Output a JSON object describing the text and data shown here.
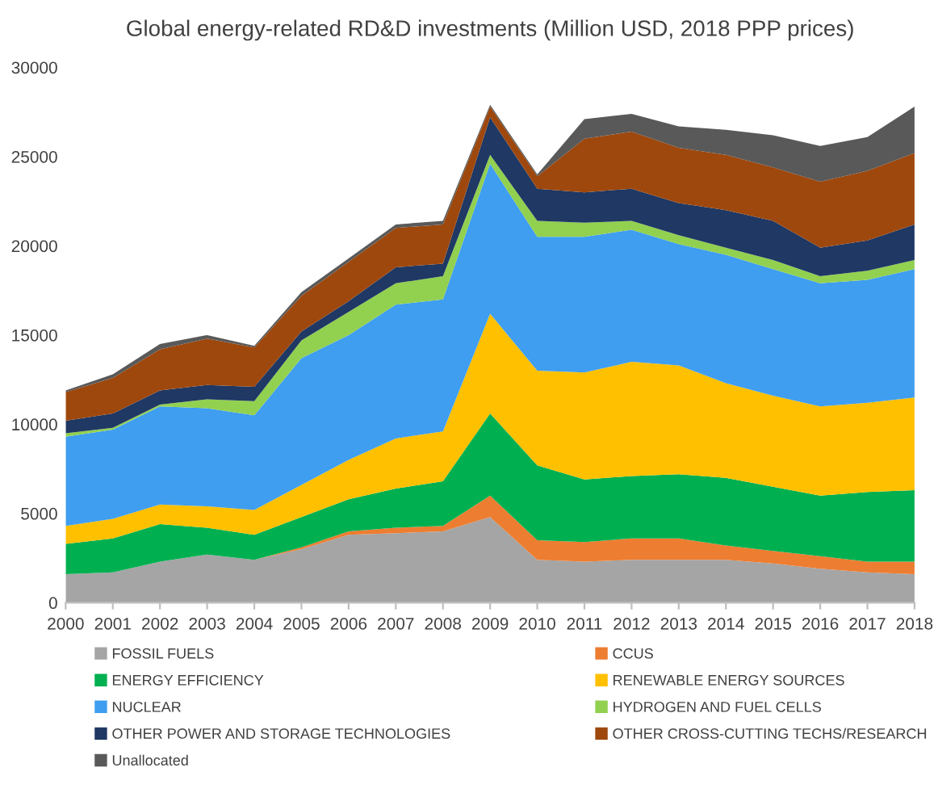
{
  "chart_data": {
    "type": "area",
    "stacked": true,
    "title": "Global energy-related RD&D investments (Million USD, 2018 PPP prices)",
    "x": [
      2000,
      2001,
      2002,
      2003,
      2004,
      2005,
      2006,
      2007,
      2008,
      2009,
      2010,
      2011,
      2012,
      2013,
      2014,
      2015,
      2016,
      2017,
      2018
    ],
    "xlim": [
      2000,
      2018
    ],
    "xticks": [
      2000,
      2001,
      2002,
      2003,
      2004,
      2005,
      2006,
      2007,
      2008,
      2009,
      2010,
      2011,
      2012,
      2013,
      2014,
      2015,
      2016,
      2017,
      2018
    ],
    "ylim": [
      0,
      30000
    ],
    "yticks": [
      0,
      5000,
      10000,
      15000,
      20000,
      25000,
      30000
    ],
    "grid": false,
    "legend": "bottom",
    "series": [
      {
        "name": "FOSSIL FUELS",
        "color": "#a5a5a5",
        "values": [
          1600,
          1700,
          2300,
          2700,
          2400,
          3000,
          3800,
          3900,
          4000,
          4800,
          2400,
          2300,
          2400,
          2400,
          2400,
          2200,
          1900,
          1700,
          1600
        ]
      },
      {
        "name": "CCUS",
        "color": "#ed7d31",
        "values": [
          0,
          0,
          0,
          0,
          0,
          100,
          200,
          300,
          300,
          1200,
          1100,
          1100,
          1200,
          1200,
          800,
          700,
          700,
          600,
          700
        ]
      },
      {
        "name": "ENERGY EFFICIENCY",
        "color": "#00b050",
        "values": [
          1700,
          1900,
          2100,
          1500,
          1400,
          1700,
          1800,
          2200,
          2500,
          4600,
          4200,
          3500,
          3500,
          3600,
          3800,
          3600,
          3400,
          3900,
          4000
        ]
      },
      {
        "name": "RENEWABLE ENERGY SOURCES",
        "color": "#ffc000",
        "values": [
          1000,
          1100,
          1100,
          1200,
          1400,
          1800,
          2200,
          2800,
          2800,
          5600,
          5300,
          6000,
          6400,
          6100,
          5300,
          5100,
          5000,
          5000,
          5200
        ]
      },
      {
        "name": "NUCLEAR",
        "color": "#3f9ef0",
        "values": [
          5000,
          5000,
          5500,
          5500,
          5300,
          7100,
          7000,
          7500,
          7400,
          8400,
          7500,
          7600,
          7400,
          6800,
          7200,
          7100,
          6900,
          6900,
          7200
        ]
      },
      {
        "name": "HYDROGEN AND FUEL CELLS",
        "color": "#92d050",
        "values": [
          200,
          100,
          100,
          500,
          800,
          1000,
          1300,
          1200,
          1300,
          500,
          900,
          800,
          500,
          500,
          400,
          500,
          400,
          500,
          500
        ]
      },
      {
        "name": "OTHER POWER AND STORAGE TECHNOLOGIES",
        "color": "#1f3864",
        "values": [
          700,
          800,
          800,
          800,
          800,
          500,
          600,
          900,
          700,
          2100,
          1800,
          1700,
          1800,
          1800,
          2100,
          2200,
          1600,
          1700,
          2000
        ]
      },
      {
        "name": "OTHER CROSS-CUTTING TECHS/RESEARCH",
        "color": "#9e480e",
        "values": [
          1600,
          2000,
          2300,
          2600,
          2200,
          2000,
          2200,
          2200,
          2200,
          600,
          700,
          3000,
          3200,
          3100,
          3100,
          3000,
          3700,
          3900,
          4000
        ]
      },
      {
        "name": "Unallocated",
        "color": "#595959",
        "values": [
          100,
          200,
          300,
          200,
          100,
          200,
          200,
          200,
          200,
          100,
          100,
          1100,
          1000,
          1200,
          1400,
          1800,
          2000,
          1900,
          2600
        ]
      }
    ]
  }
}
